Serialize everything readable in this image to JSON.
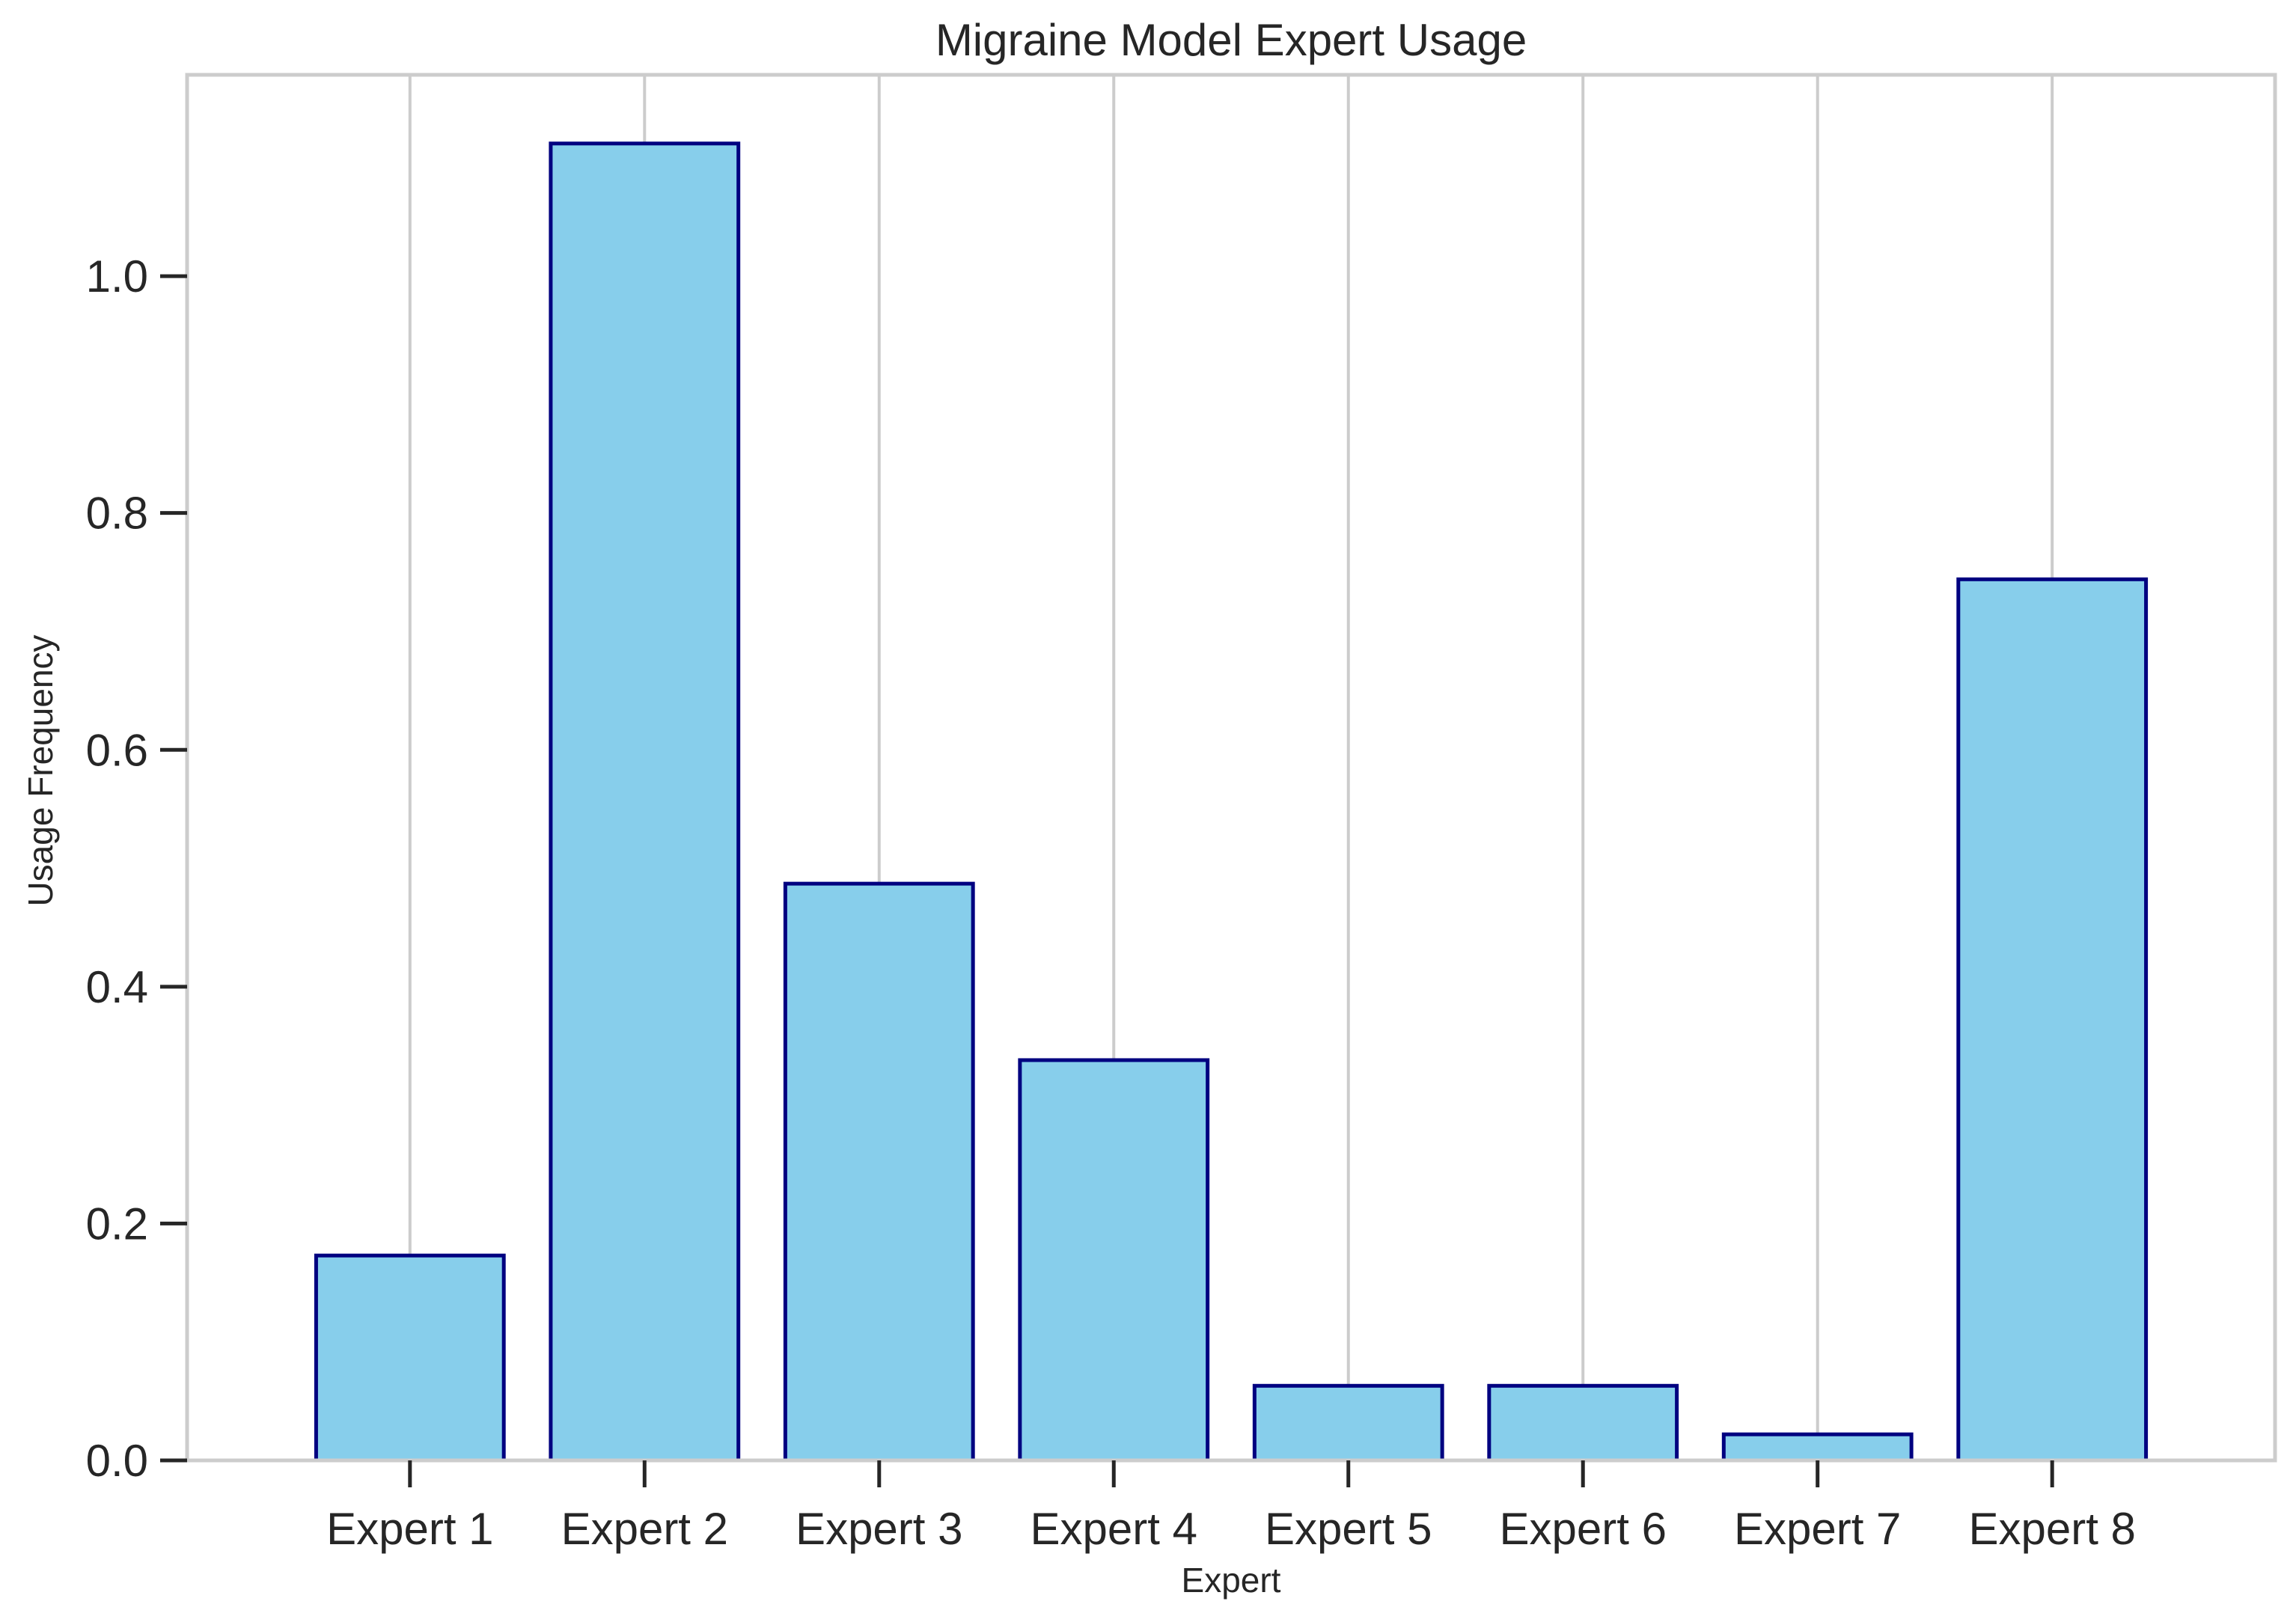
{
  "chart_data": {
    "type": "bar",
    "title": "Migraine Model Expert Usage",
    "xlabel": "Expert",
    "ylabel": "Usage Frequency",
    "categories": [
      "Expert 1",
      "Expert 2",
      "Expert 3",
      "Expert 4",
      "Expert 5",
      "Expert 6",
      "Expert 7",
      "Expert 8"
    ],
    "values": [
      0.173,
      1.112,
      0.487,
      0.338,
      0.063,
      0.063,
      0.022,
      0.744
    ],
    "ylim": [
      0,
      1.17
    ],
    "yticks": [
      0.0,
      0.2,
      0.4,
      0.6,
      0.8,
      1.0
    ],
    "ytick_labels": [
      "0.0",
      "0.2",
      "0.4",
      "0.6",
      "0.8",
      "1.0"
    ],
    "grid": "vertical",
    "legend": "none",
    "colors": {
      "bar_fill": "#87ceeb",
      "bar_edge": "#000080",
      "grid": "#cccccc",
      "spine": "#cccccc",
      "tick": "#262626",
      "text": "#262626"
    }
  }
}
